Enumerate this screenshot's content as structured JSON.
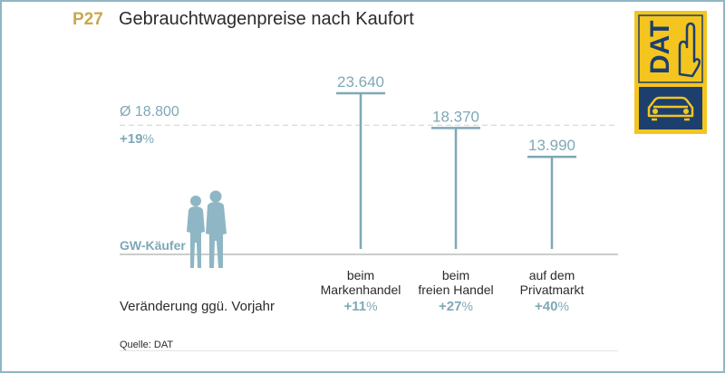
{
  "header": {
    "code": "P27",
    "title": "Gebrauchtwagenpreise nach Kaufort"
  },
  "logo": {
    "text": "DAT"
  },
  "colors": {
    "accent_gold": "#c9a84f",
    "series_blue": "#7fa8b6",
    "logo_yellow": "#f4c51f",
    "logo_navy": "#1c3f6e"
  },
  "chart_data": {
    "type": "bar",
    "categories": [
      "beim\nMarkenhandel",
      "beim\nfreien Handel",
      "auf dem\nPrivatmarkt"
    ],
    "values": [
      23640,
      18370,
      13990
    ],
    "value_labels": [
      "23.640",
      "18.370",
      "13.990"
    ],
    "changes": [
      11,
      27,
      40
    ],
    "change_labels": [
      "+11",
      "+27",
      "+40"
    ],
    "average": {
      "value": 18800,
      "label": "Ø 18.800",
      "change_label": "+19"
    },
    "percent_sign": "%",
    "baseline_label": "GW-Käufer",
    "change_row_label": "Veränderung ggü. Vorjahr",
    "ylim": [
      0,
      25000
    ],
    "grid": false,
    "legend": "none",
    "source": "Quelle: DAT"
  }
}
